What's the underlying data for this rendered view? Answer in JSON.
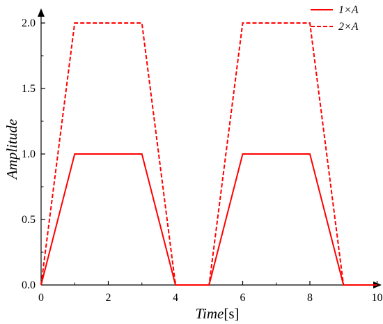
{
  "chart_data": {
    "type": "line",
    "xlabel_italic": "Time",
    "xlabel_unit": "[s]",
    "ylabel": "Amplitude",
    "xlim": [
      0,
      10
    ],
    "ylim": [
      0,
      2
    ],
    "x_ticks": [
      "0",
      "2",
      "4",
      "6",
      "8",
      "10"
    ],
    "y_ticks": [
      "0.0",
      "0.5",
      "1.0",
      "1.5",
      "2.0"
    ],
    "grid": false,
    "legend_position": "top-right",
    "series": [
      {
        "name": "1×A",
        "color": "#ff0000",
        "line_style": "solid",
        "x": [
          0,
          1,
          3,
          4,
          5,
          6,
          8,
          9,
          10
        ],
        "y": [
          0,
          1,
          1,
          0,
          0,
          1,
          1,
          0,
          0
        ]
      },
      {
        "name": "2×A",
        "color": "#ff0000",
        "line_style": "dashed",
        "x": [
          0,
          1,
          3,
          4,
          5,
          6,
          8,
          9,
          10
        ],
        "y": [
          0,
          2,
          2,
          0,
          0,
          2,
          2,
          0,
          0
        ]
      }
    ]
  }
}
